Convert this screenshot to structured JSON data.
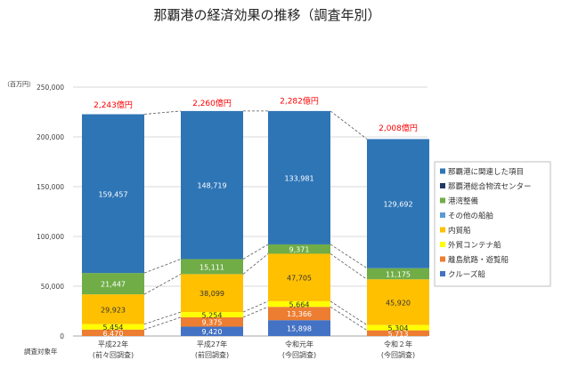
{
  "chart_data": {
    "type": "bar",
    "stacked": true,
    "title": "那覇港の経済効果の推移（調査年別）",
    "y_unit": "（百万円）",
    "x_axis_title": "調査対象年",
    "ylim": [
      0,
      250000
    ],
    "y_ticks": [
      "0",
      "50,000",
      "100,000",
      "150,000",
      "200,000",
      "250,000"
    ],
    "categories": [
      [
        "平成22年",
        "(前々回調査)"
      ],
      [
        "平成27年",
        "(前回調査)"
      ],
      [
        "令和元年",
        "(今回調査)"
      ],
      [
        "令和２年",
        "(今回調査)"
      ]
    ],
    "totals": [
      "2,243億円",
      "2,260億円",
      "2,282億円",
      "2,008億円"
    ],
    "total_values": [
      224300,
      226000,
      228200,
      200800
    ],
    "series": [
      {
        "name": "クルーズ船",
        "color": "#4472c4",
        "values": [
          null,
          9420,
          15898,
          null
        ],
        "labels": [
          "",
          "9,420",
          "15,898",
          ""
        ]
      },
      {
        "name": "離島航路・遊覧船",
        "color": "#ed7d31",
        "values": [
          6470,
          9375,
          13366,
          5713
        ],
        "labels": [
          "6,470",
          "9,375",
          "13,366",
          "5,713"
        ]
      },
      {
        "name": "外貿コンテナ船",
        "color": "#ffff00",
        "values": [
          5454,
          5254,
          5664,
          5304
        ],
        "labels": [
          "5,454",
          "5,254",
          "5,664",
          "5,304"
        ]
      },
      {
        "name": "内貿船",
        "color": "#ffc000",
        "values": [
          29923,
          38099,
          47705,
          45920
        ],
        "labels": [
          "29,923",
          "38,099",
          "47,705",
          "45,920"
        ]
      },
      {
        "name": "その他の船舶",
        "color": "#5b9bd5",
        "values": [
          null,
          null,
          null,
          null
        ],
        "labels": [
          "",
          "",
          "",
          ""
        ]
      },
      {
        "name": "港湾整備",
        "color": "#70ad47",
        "values": [
          21447,
          15111,
          9371,
          11175
        ],
        "labels": [
          "21,447",
          "15,111",
          "9,371",
          "11,175"
        ]
      },
      {
        "name": "那覇港総合物流センター",
        "color": "#1f3864",
        "values": [
          null,
          null,
          null,
          null
        ],
        "labels": [
          "",
          "",
          "",
          ""
        ]
      },
      {
        "name": "那覇港に関連した項目",
        "color": "#2e75b6",
        "values": [
          159457,
          148719,
          133981,
          129692
        ],
        "labels": [
          "159,457",
          "148,719",
          "133,981",
          "129,692"
        ]
      }
    ],
    "legend_order": [
      "那覇港に関連した項目",
      "那覇港総合物流センター",
      "港湾整備",
      "その他の船舶",
      "内貿船",
      "外貿コンテナ船",
      "離島航路・遊覧船",
      "クルーズ船"
    ],
    "legend_position": "right",
    "grid": true,
    "colors": {
      "total_label": "#ff0000",
      "connector": "#595959"
    }
  }
}
